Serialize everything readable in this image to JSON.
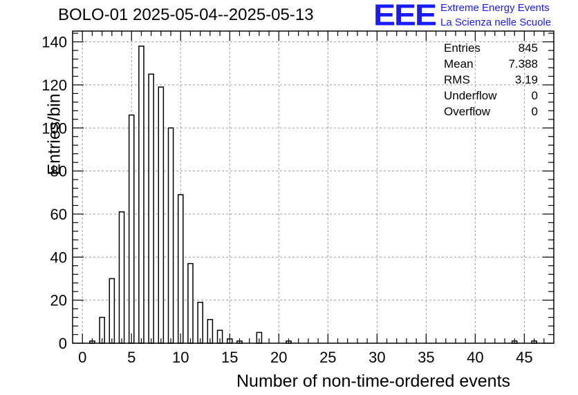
{
  "chart_data": {
    "type": "bar",
    "title": "BOLO-01 2025-05-04--2025-05-13",
    "xlabel": "Number of non-time-ordered events",
    "ylabel": "Entries/bin",
    "xlim": [
      -1,
      48
    ],
    "ylim": [
      0,
      145
    ],
    "x_ticks": [
      "0",
      "5",
      "10",
      "15",
      "20",
      "25",
      "30",
      "35",
      "40",
      "45"
    ],
    "y_ticks": [
      "0",
      "20",
      "40",
      "60",
      "80",
      "100",
      "120",
      "140"
    ],
    "grid": true,
    "bin_width": 0.5,
    "bins": [
      {
        "x": 1,
        "value": 1
      },
      {
        "x": 2,
        "value": 12
      },
      {
        "x": 3,
        "value": 30
      },
      {
        "x": 4,
        "value": 61
      },
      {
        "x": 5,
        "value": 106
      },
      {
        "x": 6,
        "value": 138
      },
      {
        "x": 7,
        "value": 125
      },
      {
        "x": 8,
        "value": 119
      },
      {
        "x": 9,
        "value": 100
      },
      {
        "x": 10,
        "value": 69
      },
      {
        "x": 11,
        "value": 37
      },
      {
        "x": 12,
        "value": 19
      },
      {
        "x": 13,
        "value": 11
      },
      {
        "x": 14,
        "value": 6
      },
      {
        "x": 15,
        "value": 2
      },
      {
        "x": 16,
        "value": 1
      },
      {
        "x": 18,
        "value": 5
      },
      {
        "x": 21,
        "value": 1
      },
      {
        "x": 44,
        "value": 1
      },
      {
        "x": 46,
        "value": 1
      }
    ]
  },
  "stats": {
    "entries_label": "Entries",
    "entries": "845",
    "mean_label": "Mean",
    "mean": "7.388",
    "rms_label": "RMS",
    "rms": "3.19",
    "underflow_label": "Underflow",
    "underflow": "0",
    "overflow_label": "Overflow",
    "overflow": "0"
  },
  "logo": {
    "mark": "EEE",
    "line1": "Extreme Energy Events",
    "line2": "La Scienza nelle Scuole",
    "color": "#1a1aff"
  }
}
